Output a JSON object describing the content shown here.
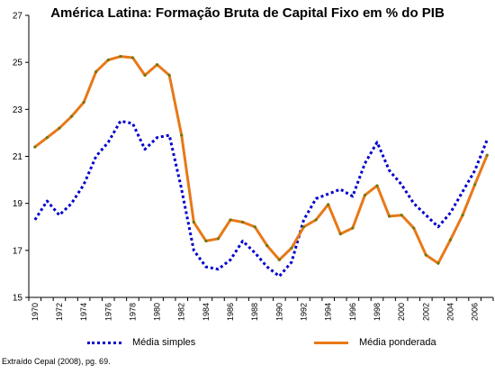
{
  "chart_data": {
    "type": "line",
    "title": "América Latina: Formação Bruta de Capital Fixo em % do PIB",
    "xlabel": "",
    "ylabel": "",
    "ylim": [
      15,
      27
    ],
    "yticks": [
      "15",
      "17",
      "19",
      "21",
      "23",
      "25",
      "27"
    ],
    "x": [
      1970,
      1971,
      1972,
      1973,
      1974,
      1975,
      1976,
      1977,
      1978,
      1979,
      1980,
      1981,
      1982,
      1983,
      1984,
      1985,
      1986,
      1987,
      1988,
      1989,
      1990,
      1991,
      1992,
      1993,
      1994,
      1995,
      1996,
      1997,
      1998,
      1999,
      2000,
      2001,
      2002,
      2003,
      2004,
      2005,
      2006,
      2007
    ],
    "xtick_labels": [
      "1970",
      "1972",
      "1974",
      "1976",
      "1978",
      "1980",
      "1982",
      "1984",
      "1986",
      "1988",
      "1990",
      "1992",
      "1994",
      "1996",
      "1998",
      "2000",
      "2002",
      "2004",
      "2006"
    ],
    "series": [
      {
        "name": "Média simples",
        "color": "#0000cc",
        "style": "dotted",
        "values": [
          18.3,
          19.1,
          18.5,
          19.0,
          19.8,
          21.0,
          21.6,
          22.5,
          22.4,
          21.3,
          21.8,
          21.9,
          19.6,
          17.0,
          16.3,
          16.2,
          16.6,
          17.4,
          16.9,
          16.3,
          15.9,
          16.5,
          18.3,
          19.2,
          19.4,
          19.6,
          19.3,
          20.7,
          21.6,
          20.4,
          19.8,
          19.0,
          18.5,
          18.0,
          18.6,
          19.5,
          20.4,
          21.7
        ]
      },
      {
        "name": "Média ponderada",
        "color": "#e87817",
        "marker_color": "#6b7a10",
        "style": "solid",
        "values": [
          21.4,
          21.8,
          22.2,
          22.7,
          23.3,
          24.6,
          25.1,
          25.25,
          25.2,
          24.45,
          24.9,
          24.45,
          21.9,
          18.2,
          17.4,
          17.5,
          18.3,
          18.2,
          18.0,
          17.2,
          16.6,
          17.1,
          18.0,
          18.3,
          18.95,
          17.7,
          17.95,
          19.35,
          19.75,
          18.45,
          18.5,
          17.95,
          16.8,
          16.45,
          17.45,
          18.5,
          19.8,
          21.05
        ]
      }
    ],
    "grid": false,
    "legend_position": "bottom"
  },
  "source_note": "Extraído Cepal (2008), pg. 69."
}
